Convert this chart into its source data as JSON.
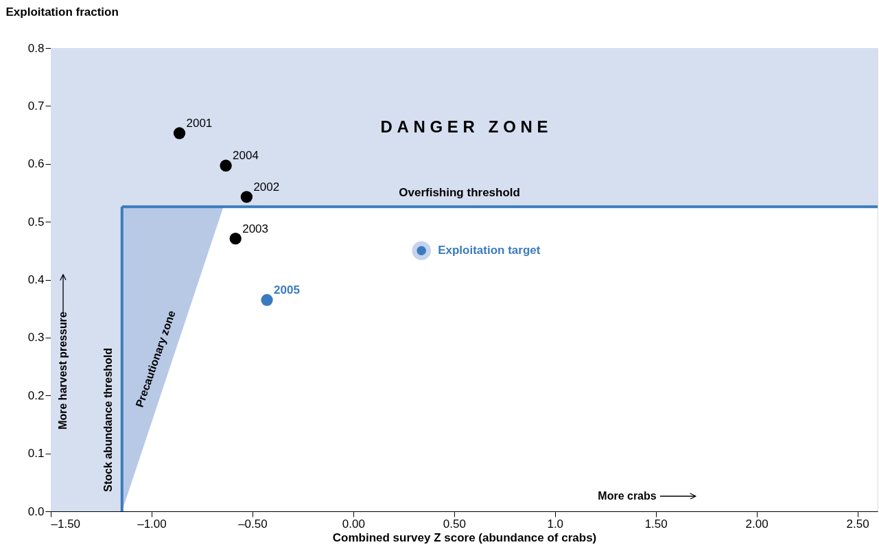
{
  "chart_data": {
    "type": "scatter",
    "xlabel": "Combined survey Z score (abundance of crabs)",
    "ylabel": "Exploitation fraction",
    "xlim": [
      -1.5,
      2.6
    ],
    "xticks": [
      {
        "value": -1.5,
        "label": "–1.50"
      },
      {
        "value": -1.0,
        "label": "–1.00"
      },
      {
        "value": -0.5,
        "label": "–0.50"
      },
      {
        "value": 0,
        "label": "0.00"
      },
      {
        "value": 0.5,
        "label": "0.50"
      },
      {
        "value": 1.0,
        "label": "1.0"
      },
      {
        "value": 1.5,
        "label": "1.50"
      },
      {
        "value": 2.0,
        "label": "2.00"
      },
      {
        "value": 2.5,
        "label": "2.50"
      }
    ],
    "ylim": [
      0,
      0.8
    ],
    "yticks": [
      {
        "value": 0,
        "label": "0.0"
      },
      0.1,
      0.2,
      0.3,
      0.4,
      0.5,
      0.6,
      0.7,
      0.8
    ],
    "grid": false,
    "series": [
      {
        "name": "Precautionary zone",
        "type": "area",
        "color": "#b7c9e5",
        "x": [
          -1.147,
          -0.644
        ],
        "values": [
          0,
          0.526
        ]
      },
      {
        "name": "2001",
        "color": "#000000",
        "marker": "circle",
        "x": [
          -0.862
        ],
        "values": [
          0.653
        ]
      },
      {
        "name": "2002",
        "color": "#000000",
        "marker": "circle",
        "x": [
          -0.529
        ],
        "values": [
          0.543
        ]
      },
      {
        "name": "2003",
        "color": "#000000",
        "marker": "circle",
        "x": [
          -0.584
        ],
        "values": [
          0.471
        ]
      },
      {
        "name": "2004",
        "color": "#000000",
        "marker": "circle",
        "x": [
          -0.632
        ],
        "values": [
          0.597
        ]
      },
      {
        "name": "2005",
        "color": "#3a7bbf",
        "marker": "circle",
        "x": [
          -0.428
        ],
        "values": [
          0.365
        ]
      },
      {
        "name": "Exploitation target",
        "color": "#3a7bbf",
        "marker": "circle",
        "x": [
          0.338
        ],
        "values": [
          0.45
        ]
      }
    ],
    "ref_lines": [
      {
        "axis": "y",
        "value": 0.526,
        "label": "Overfishing threshold",
        "color": "#3a7bbf"
      },
      {
        "axis": "x",
        "value": -1.147,
        "label": "Stock abundance threshold",
        "color": "#3a7bbf"
      }
    ],
    "bands": [
      {
        "axis": "y",
        "from": 0.526,
        "to": 0.8,
        "label": "D A N G E R   Z O N E",
        "color": "#d6dff0"
      },
      {
        "axis": "x",
        "from": -1.5,
        "to": -1.147,
        "color": "#d6dff0"
      }
    ],
    "annotations": [
      "More crabs",
      "More harvest pressure"
    ]
  }
}
